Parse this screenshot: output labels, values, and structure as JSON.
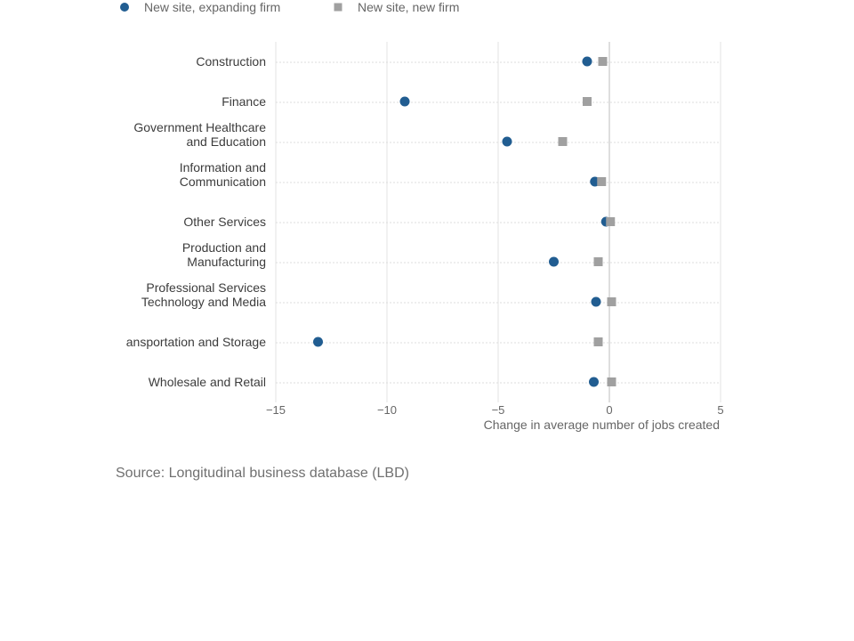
{
  "chart_data": {
    "type": "scatter",
    "orientation": "horizontal",
    "categories": [
      [
        "Construction"
      ],
      [
        "Finance"
      ],
      [
        "Government Healthcare",
        "and Education"
      ],
      [
        "Information and",
        "Communication"
      ],
      [
        "Other Services"
      ],
      [
        "Production and",
        "Manufacturing"
      ],
      [
        "Professional Services",
        "Technology and Media"
      ],
      [
        "ansportation and Storage"
      ],
      [
        "Wholesale and Retail"
      ]
    ],
    "series": [
      {
        "name": "New site, expanding firm",
        "marker": "circle",
        "color": "#215d91",
        "values": [
          -1.0,
          -9.2,
          -4.6,
          -0.65,
          -0.15,
          -2.5,
          -0.6,
          -13.1,
          -0.7
        ]
      },
      {
        "name": "New site, new firm",
        "marker": "square",
        "color": "#a0a0a0",
        "values": [
          -0.3,
          -1.0,
          -2.1,
          -0.35,
          0.05,
          -0.5,
          0.1,
          -0.5,
          0.1
        ]
      }
    ],
    "xlim": [
      -15,
      5
    ],
    "xticks": [
      -15,
      -10,
      -5,
      0,
      5
    ],
    "xtick_labels": [
      "−15",
      "−10",
      "−5",
      "0",
      "5"
    ],
    "xlabel": "Change in average number of jobs created",
    "ylabel": "",
    "grid": true,
    "legend_position": "top-left"
  },
  "source": "Source: Longitudinal business database (LBD)"
}
